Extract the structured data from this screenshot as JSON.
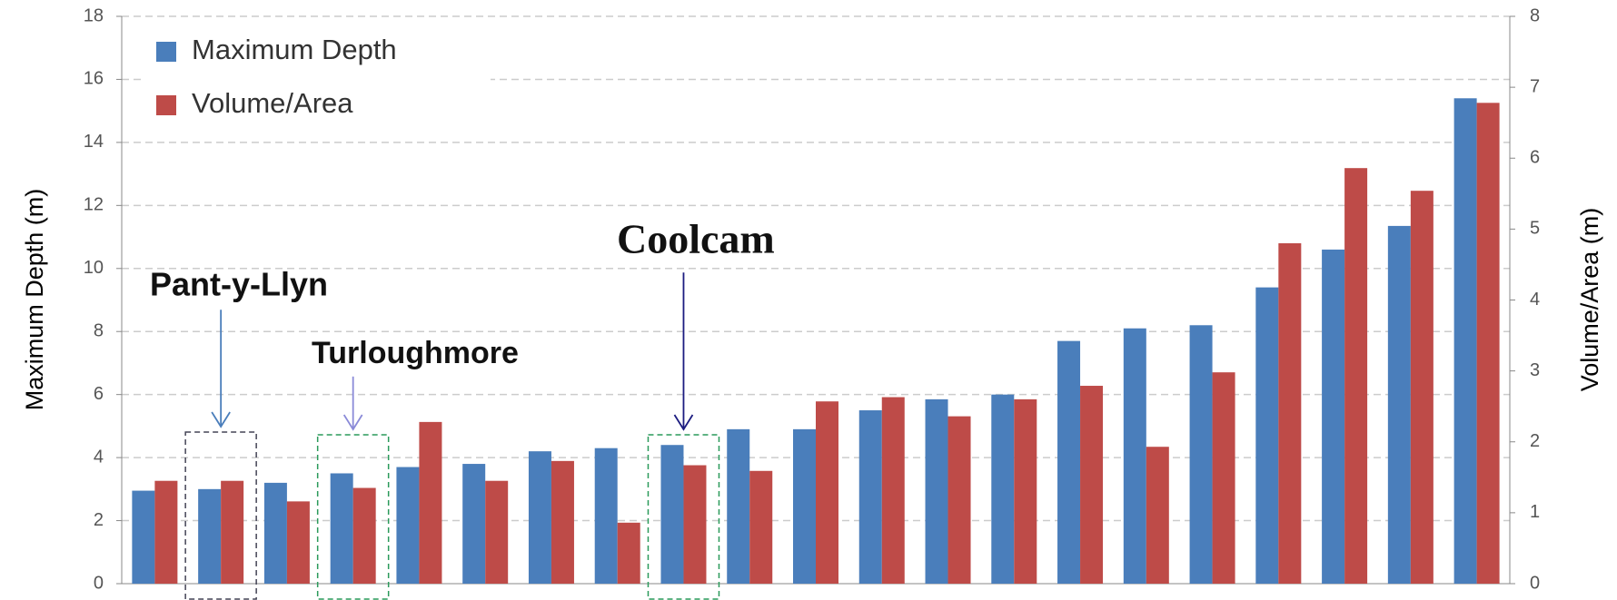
{
  "chart_data": {
    "type": "bar",
    "categories": [
      null,
      null,
      null,
      null,
      null,
      null,
      null,
      null,
      null,
      null,
      null,
      null,
      null,
      null,
      null,
      null,
      null,
      null,
      null,
      null,
      null
    ],
    "series": [
      {
        "name": "Maximum Depth",
        "color": "#4a7ebb",
        "values": [
          2.95,
          3.0,
          3.2,
          3.5,
          3.7,
          3.8,
          4.2,
          4.3,
          4.4,
          4.9,
          4.9,
          5.5,
          5.85,
          6.0,
          7.7,
          8.1,
          8.2,
          9.4,
          10.6,
          11.35,
          15.4
        ]
      },
      {
        "name": "Volume/Area",
        "color": "#be4b48",
        "axis": "y2",
        "values": [
          1.45,
          1.45,
          1.16,
          1.35,
          2.28,
          1.45,
          1.73,
          0.86,
          1.67,
          1.59,
          2.57,
          2.63,
          2.36,
          2.6,
          2.79,
          1.93,
          2.98,
          4.8,
          5.86,
          5.54,
          6.78
        ]
      }
    ],
    "ylabel": "Maximum Depth (m)",
    "y2label": "Volume/Area (m)",
    "ylim": [
      0,
      18
    ],
    "yticks": [
      0,
      2,
      4,
      6,
      8,
      10,
      12,
      14,
      16,
      18
    ],
    "y2lim": [
      0,
      8
    ],
    "y2ticks": [
      0,
      1,
      2,
      3,
      4,
      5,
      6,
      7,
      8
    ],
    "grid": true,
    "legend": "upper left",
    "annotations": [
      {
        "text": "Pant-y-Llyn"
      },
      {
        "text": "Turloughmore"
      },
      {
        "text": "Coolcam"
      }
    ]
  }
}
